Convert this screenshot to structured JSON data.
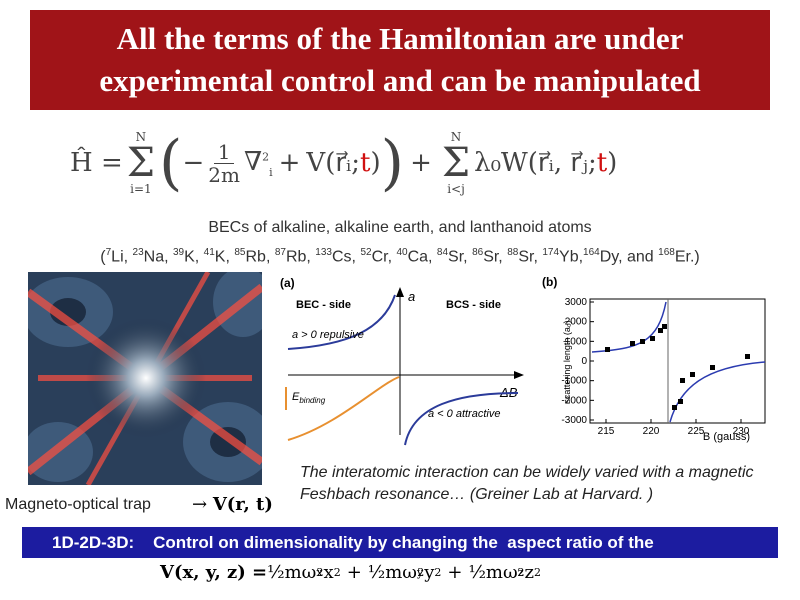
{
  "title": "All the terms of the Hamiltonian are under experimental control and can be manipulated",
  "hamiltonian": {
    "lhs": "Ĥ =",
    "sum_symbol": "Σ",
    "sum1_upper": "N",
    "sum1_lower": "i=1",
    "open_paren": "(",
    "minus": "−",
    "frac_num": "1",
    "frac_den": "2m",
    "laplacian": "∇",
    "laplacian_sup": "2",
    "laplacian_sub": "i",
    "plus": "+",
    "potential": "V(",
    "potential_arg": "r⃗ᵢ",
    "separator": ";",
    "time": "t",
    "close": ")",
    "close_paren": ")",
    "sum2_upper": "N",
    "sum2_lower": "i<j",
    "interaction": "λ₀W(",
    "interaction_args": "r⃗ᵢ, r⃗ⱼ"
  },
  "atoms": {
    "heading": "BECs of alkaline, alkaline earth, and lanthanoid atoms",
    "isotopes": [
      {
        "text": "("
      },
      {
        "sup": "7",
        "text": "Li, "
      },
      {
        "sup": "23",
        "text": "Na, "
      },
      {
        "sup": "39",
        "text": "K, "
      },
      {
        "sup": "41",
        "text": "K, "
      },
      {
        "sup": "85",
        "text": "Rb, "
      },
      {
        "sup": "87",
        "text": "Rb, "
      },
      {
        "sup": "133",
        "text": "Cs, "
      },
      {
        "sup": "52",
        "text": "Cr, "
      },
      {
        "sup": "40",
        "text": "Ca, "
      },
      {
        "sup": "84",
        "text": "Sr, "
      },
      {
        "sup": "86",
        "text": "Sr, "
      },
      {
        "sup": "88",
        "text": "Sr, "
      },
      {
        "sup": "174",
        "text": "Yb,"
      },
      {
        "sup": "164",
        "text": "Dy, "
      },
      {
        "text": "and "
      },
      {
        "sup": "168",
        "text": "Er.)"
      }
    ]
  },
  "trap": {
    "label": "Magneto-optical trap",
    "arrow": "→",
    "potential": "V(r, t)"
  },
  "figure_a": {
    "panel": "(a)",
    "bec_side": "BEC - side",
    "bcs_side": "BCS - side",
    "axis_y": "a",
    "repulsive": "a > 0  repulsive",
    "binding": "E",
    "binding_sub": "binding",
    "axis_x": "ΔB",
    "attractive": "a < 0  attractive"
  },
  "figure_b": {
    "panel": "(b)",
    "yticks": [
      "3000",
      "2000",
      "1000",
      "0",
      "-1000",
      "-2000",
      "-3000"
    ],
    "xticks": [
      "215",
      "220",
      "225",
      "230"
    ],
    "xlabel": "B (gauss)",
    "ylabel": "scattering length (a₀)"
  },
  "caption": "The interatomic interaction can be widely varied with a magnetic Feshbach resonance… (Greiner Lab at Harvard. )",
  "dimensionality": {
    "label": "1D-2D-3D:",
    "text": "Control on dimensionality by changing the  aspect ratio of the"
  },
  "confinement": {
    "lhs": "V(x, y, z) =",
    "half": "½",
    "mass_freq": "mω",
    "square": "2",
    "plus": "+",
    "axes": [
      "x",
      "y",
      "z"
    ]
  }
}
